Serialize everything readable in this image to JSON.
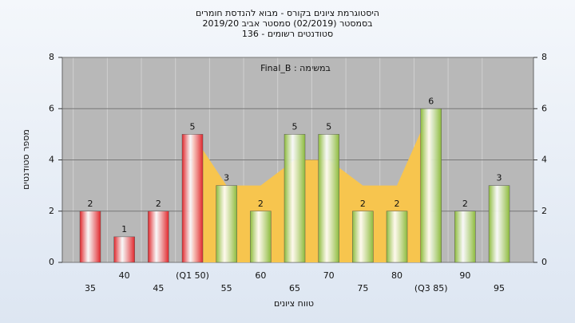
{
  "chart_data": {
    "type": "bar",
    "title_lines": [
      "היסטוגרמת ציונים בקורס - מבוא להנדסת חומרים",
      "בסמסטר  (02/2019)  סמסטר אביב 2019/20",
      "סטודנטים רשומים - 136"
    ],
    "annotation": "במשימה : Final_B",
    "x_label": "טווח ציונים",
    "y_label": "מספר סטודנטים",
    "categories": [
      "35",
      "40",
      "45",
      "(Q1 50)",
      "55",
      "60",
      "65",
      "70",
      "75",
      "80",
      "(Q3 85)",
      "90",
      "95"
    ],
    "values": [
      2,
      1,
      2,
      5,
      3,
      2,
      5,
      5,
      2,
      2,
      6,
      2,
      3
    ],
    "colors": [
      "#e0262b",
      "#e0262b",
      "#e0262b",
      "#e0262b",
      "#8dbb3c",
      "#8dbb3c",
      "#8dbb3c",
      "#8dbb3c",
      "#8dbb3c",
      "#8dbb3c",
      "#8dbb3c",
      "#8dbb3c",
      "#8dbb3c"
    ],
    "band": {
      "color": "#f7c54e",
      "values": [
        null,
        null,
        null,
        5,
        3,
        3,
        4,
        4,
        3,
        3,
        6,
        null,
        null
      ]
    },
    "ylim": [
      0,
      8
    ],
    "yticks": [
      0,
      2,
      4,
      6,
      8
    ],
    "grid": true
  }
}
